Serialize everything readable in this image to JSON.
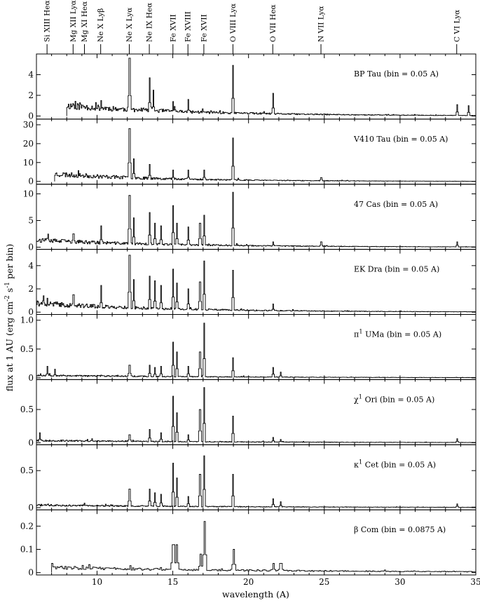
{
  "chart_data": {
    "type": "line",
    "xlabel": "wavelength (A)",
    "ylabel": "flux at 1 AU (erg cm",
    "ylabel_sup1": "-2",
    "ylabel_mid": " s",
    "ylabel_sup2": "-1",
    "ylabel_end": " per bin)",
    "xlim": [
      6,
      35
    ],
    "x_ticks": [
      10,
      15,
      20,
      25,
      30,
      35
    ],
    "grid": false,
    "line_ids": [
      {
        "label": "Si XIII Heα",
        "x": 6.7
      },
      {
        "label": "Mg XII Lyα",
        "x": 8.42
      },
      {
        "label": "Mg XI Heα",
        "x": 9.17
      },
      {
        "label": "Ne X Lyβ",
        "x": 10.24
      },
      {
        "label": "Ne X Lyα",
        "x": 12.13
      },
      {
        "label": "Ne IX Heα",
        "x": 13.45
      },
      {
        "label": "Fe XVII",
        "x": 15.01
      },
      {
        "label": "Fe XVIII",
        "x": 16.0
      },
      {
        "label": "Fe XVII",
        "x": 17.05
      },
      {
        "label": "O VIII Lyα",
        "x": 18.97
      },
      {
        "label": "O VII Heα",
        "x": 21.6
      },
      {
        "label": "N VII Lyα",
        "x": 24.78
      },
      {
        "label": "C VI Lyα",
        "x": 33.74
      }
    ],
    "panels": [
      {
        "name": "BP Tau (bin = 0.05 A)",
        "ylim": [
          -0.3,
          6.0
        ],
        "yticks": [
          "0",
          "2",
          "4"
        ],
        "ytick_values": [
          0,
          2,
          4
        ],
        "xstart": 8.0,
        "continuum": 0.9,
        "noise": 0.7,
        "decay": 0.9,
        "seed": 11,
        "bin": 0.05,
        "peaks": [
          [
            12.13,
            5.6
          ],
          [
            13.45,
            3.7
          ],
          [
            13.7,
            2.5
          ],
          [
            15.01,
            1.4
          ],
          [
            16.0,
            1.6
          ],
          [
            18.97,
            4.9
          ],
          [
            21.6,
            2.2
          ],
          [
            10.24,
            1.5
          ],
          [
            8.42,
            1.2
          ],
          [
            33.74,
            1.1
          ],
          [
            34.5,
            1.0
          ]
        ]
      },
      {
        "name": "V410 Tau (bin = 0.05 A)",
        "ylim": [
          -1.5,
          33.0
        ],
        "yticks": [
          "0",
          "10",
          "20",
          "30"
        ],
        "ytick_values": [
          0,
          10,
          20,
          30
        ],
        "xstart": 7.2,
        "continuum": 3.5,
        "noise": 3.0,
        "decay": 1.1,
        "seed": 23,
        "bin": 0.05,
        "peaks": [
          [
            12.13,
            28.0
          ],
          [
            12.4,
            12.0
          ],
          [
            13.45,
            9.0
          ],
          [
            15.01,
            6.0
          ],
          [
            16.0,
            6.0
          ],
          [
            17.05,
            6.0
          ],
          [
            18.97,
            23.0
          ],
          [
            24.78,
            2.0
          ]
        ]
      },
      {
        "name": "47 Cas (bin = 0.05 A)",
        "ylim": [
          -0.4,
          11.8
        ],
        "yticks": [
          "0",
          "5",
          "10"
        ],
        "ytick_values": [
          0,
          5,
          10
        ],
        "xstart": 6.0,
        "continuum": 1.2,
        "noise": 0.9,
        "decay": 0.85,
        "seed": 37,
        "bin": 0.05,
        "peaks": [
          [
            12.13,
            9.7
          ],
          [
            12.4,
            5.5
          ],
          [
            13.45,
            6.5
          ],
          [
            13.8,
            4.5
          ],
          [
            14.2,
            4.0
          ],
          [
            15.01,
            7.8
          ],
          [
            15.26,
            4.5
          ],
          [
            16.0,
            3.8
          ],
          [
            16.78,
            4.5
          ],
          [
            17.05,
            6.0
          ],
          [
            18.97,
            10.3
          ],
          [
            10.24,
            4.0
          ],
          [
            8.42,
            2.5
          ],
          [
            21.6,
            1.0
          ],
          [
            24.78,
            1.0
          ],
          [
            33.74,
            1.0
          ]
        ]
      },
      {
        "name": "EK Dra (bin = 0.05 A)",
        "ylim": [
          -0.2,
          5.4
        ],
        "yticks": [
          "0",
          "2",
          "4"
        ],
        "ytick_values": [
          0,
          2,
          4
        ],
        "xstart": 6.0,
        "continuum": 0.7,
        "noise": 0.5,
        "decay": 0.9,
        "seed": 41,
        "bin": 0.05,
        "peaks": [
          [
            12.13,
            4.9
          ],
          [
            12.4,
            2.8
          ],
          [
            13.45,
            3.1
          ],
          [
            13.8,
            2.7
          ],
          [
            14.2,
            2.3
          ],
          [
            15.01,
            3.7
          ],
          [
            15.26,
            2.5
          ],
          [
            16.0,
            2.0
          ],
          [
            16.78,
            2.6
          ],
          [
            17.05,
            4.4
          ],
          [
            18.97,
            3.6
          ],
          [
            10.24,
            2.3
          ],
          [
            8.42,
            1.5
          ],
          [
            21.6,
            0.7
          ],
          [
            6.7,
            1.2
          ]
        ]
      },
      {
        "name": "UMa (bin = 0.05 A)",
        "name_prefix": "π",
        "name_sup": "1",
        "ylim": [
          -0.03,
          1.1
        ],
        "yticks": [
          "0",
          "0.5",
          "1.0"
        ],
        "ytick_values": [
          0,
          0.5,
          1.0
        ],
        "xstart": 6.0,
        "continuum": 0.04,
        "noise": 0.03,
        "decay": 0.6,
        "seed": 53,
        "bin": 0.05,
        "peaks": [
          [
            12.13,
            0.22
          ],
          [
            13.45,
            0.22
          ],
          [
            13.8,
            0.18
          ],
          [
            14.2,
            0.2
          ],
          [
            15.01,
            0.62
          ],
          [
            15.26,
            0.45
          ],
          [
            16.0,
            0.2
          ],
          [
            16.78,
            0.45
          ],
          [
            17.05,
            0.95
          ],
          [
            18.97,
            0.35
          ],
          [
            21.6,
            0.18
          ],
          [
            22.1,
            0.1
          ],
          [
            6.7,
            0.2
          ],
          [
            7.2,
            0.15
          ]
        ]
      },
      {
        "name": "Ori (bin = 0.05 A)",
        "name_prefix": "χ",
        "name_sup": "1",
        "ylim": [
          -0.03,
          0.95
        ],
        "yticks": [
          "0",
          "0.5"
        ],
        "ytick_values": [
          0,
          0.5
        ],
        "xstart": 6.0,
        "continuum": 0.03,
        "noise": 0.025,
        "decay": 0.6,
        "seed": 67,
        "bin": 0.05,
        "peaks": [
          [
            12.13,
            0.12
          ],
          [
            13.45,
            0.2
          ],
          [
            14.2,
            0.15
          ],
          [
            15.01,
            0.7
          ],
          [
            15.26,
            0.45
          ],
          [
            16.0,
            0.12
          ],
          [
            16.78,
            0.5
          ],
          [
            17.05,
            0.83
          ],
          [
            18.97,
            0.4
          ],
          [
            21.6,
            0.08
          ],
          [
            22.1,
            0.05
          ],
          [
            33.74,
            0.06
          ],
          [
            6.2,
            0.15
          ]
        ]
      },
      {
        "name": "Cet (bin = 0.05 A)",
        "name_prefix": "κ",
        "name_sup": "1",
        "ylim": [
          -0.03,
          0.85
        ],
        "yticks": [
          "0",
          "0.5"
        ],
        "ytick_values": [
          0,
          0.5
        ],
        "xstart": 6.0,
        "continuum": 0.03,
        "noise": 0.025,
        "decay": 0.6,
        "seed": 71,
        "bin": 0.05,
        "peaks": [
          [
            12.13,
            0.25
          ],
          [
            13.45,
            0.25
          ],
          [
            13.8,
            0.2
          ],
          [
            14.2,
            0.18
          ],
          [
            15.01,
            0.6
          ],
          [
            15.26,
            0.4
          ],
          [
            16.0,
            0.15
          ],
          [
            16.78,
            0.45
          ],
          [
            17.05,
            0.7
          ],
          [
            18.97,
            0.45
          ],
          [
            21.6,
            0.12
          ],
          [
            22.1,
            0.08
          ],
          [
            9.17,
            0.06
          ],
          [
            33.74,
            0.05
          ]
        ]
      },
      {
        "name": "Com (bin = 0.0875 A)",
        "name_prefix": "β",
        "ylim": [
          -0.01,
          0.27
        ],
        "yticks": [
          "0",
          "0.1",
          "0.2"
        ],
        "ytick_values": [
          0,
          0.1,
          0.2
        ],
        "xstart": 7.0,
        "continuum": 0.02,
        "noise": 0.015,
        "decay": 0.5,
        "seed": 83,
        "bin": 0.0875,
        "peaks": [
          [
            15.01,
            0.12
          ],
          [
            15.26,
            0.12
          ],
          [
            16.78,
            0.08
          ],
          [
            17.05,
            0.22
          ],
          [
            18.97,
            0.1
          ],
          [
            21.6,
            0.04
          ],
          [
            22.1,
            0.04
          ],
          [
            12.13,
            0.03
          ],
          [
            7.0,
            0.04
          ]
        ]
      }
    ]
  }
}
